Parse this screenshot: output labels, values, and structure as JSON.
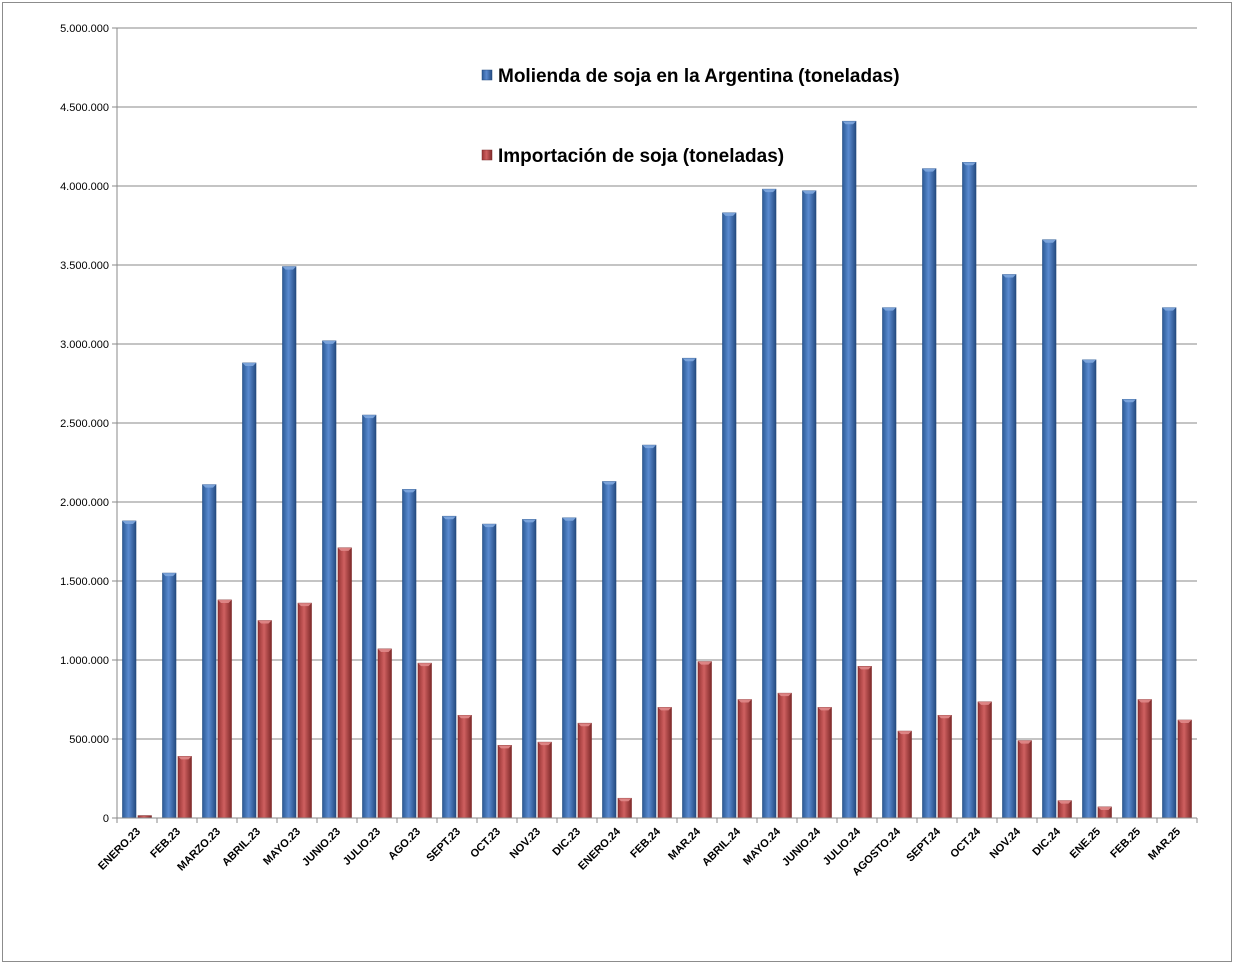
{
  "chart_data": {
    "type": "bar",
    "title": "",
    "xlabel": "",
    "ylabel": "",
    "ylim": [
      0,
      5000000
    ],
    "yticks": [
      0,
      500000,
      1000000,
      1500000,
      2000000,
      2500000,
      3000000,
      3500000,
      4000000,
      4500000,
      5000000
    ],
    "ytick_labels": [
      "0",
      "500.000",
      "1.000.000",
      "1.500.000",
      "2.000.000",
      "2.500.000",
      "3.000.000",
      "3.500.000",
      "4.000.000",
      "4.500.000",
      "5.000.000"
    ],
    "grid": true,
    "legend_position": "top-center",
    "categories": [
      "ENERO.23",
      "FEB.23",
      "MARZO.23",
      "ABRIL.23",
      "MAYO.23",
      "JUNIO.23",
      "JULIO.23",
      "AGO.23",
      "SEPT.23",
      "OCT.23",
      "NOV.23",
      "DIC.23",
      "ENERO.24",
      "FEB.24",
      "MAR.24",
      "ABRIL.24",
      "MAYO.24",
      "JUNIO.24",
      "JULIO.24",
      "AGOSTO.24",
      "SEPT.24",
      "OCT.24",
      "NOV.24",
      "DIC.24",
      "ENE.25",
      "FEB.25",
      "MAR.25"
    ],
    "series": [
      {
        "name": "Molienda de soja en la Argentina (toneladas)",
        "color": "#3f6fb0",
        "values": [
          1880000,
          1550000,
          2110000,
          2880000,
          3490000,
          3020000,
          2550000,
          2080000,
          1910000,
          1860000,
          1890000,
          1900000,
          2130000,
          2360000,
          2910000,
          3830000,
          3980000,
          3970000,
          4410000,
          3230000,
          4110000,
          4150000,
          3440000,
          3660000,
          2900000,
          2650000,
          3230000
        ]
      },
      {
        "name": "Importación de soja (toneladas)",
        "color": "#b84747",
        "values": [
          15000,
          390000,
          1380000,
          1250000,
          1360000,
          1710000,
          1070000,
          980000,
          650000,
          460000,
          480000,
          600000,
          125000,
          700000,
          990000,
          750000,
          790000,
          700000,
          960000,
          550000,
          650000,
          735000,
          490000,
          110000,
          70000,
          750000,
          620000
        ]
      }
    ]
  }
}
